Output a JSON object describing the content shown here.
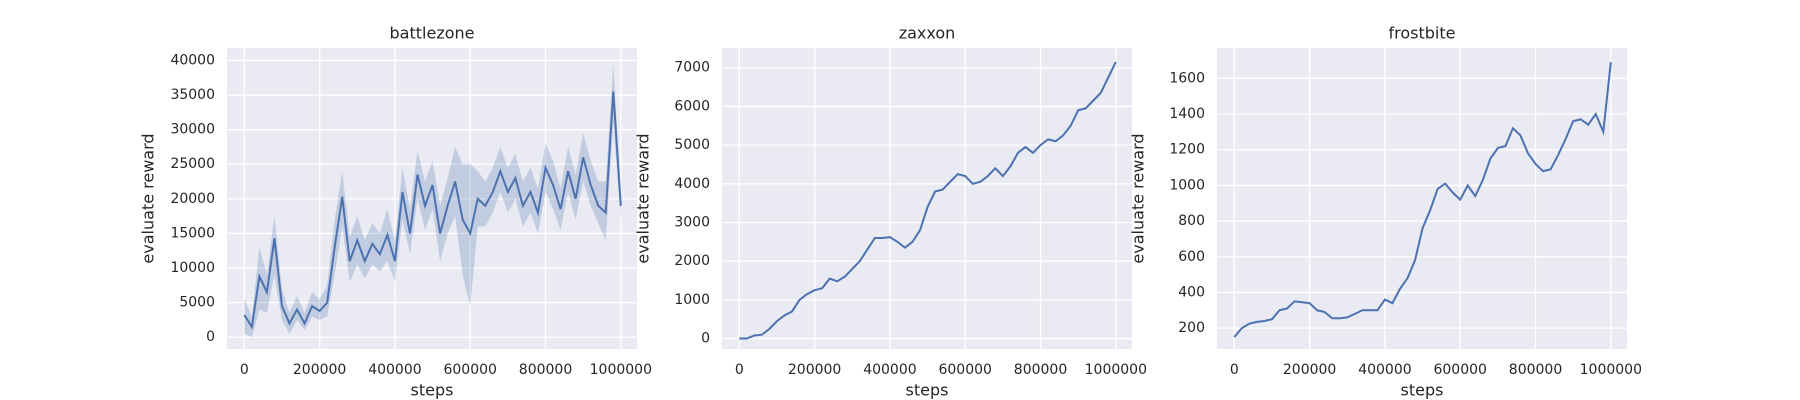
{
  "chart_data": [
    {
      "type": "line",
      "title": "battlezone",
      "x_label": "steps",
      "y_label": "evaluate reward",
      "color": "#4c72b0",
      "grid": true,
      "x": [
        0,
        20000,
        40000,
        60000,
        80000,
        100000,
        120000,
        140000,
        160000,
        180000,
        200000,
        220000,
        240000,
        260000,
        280000,
        300000,
        320000,
        340000,
        360000,
        380000,
        400000,
        420000,
        440000,
        460000,
        480000,
        500000,
        520000,
        540000,
        560000,
        580000,
        600000,
        620000,
        640000,
        660000,
        680000,
        700000,
        720000,
        740000,
        760000,
        780000,
        800000,
        820000,
        840000,
        860000,
        880000,
        900000,
        920000,
        940000,
        960000,
        980000,
        1000000
      ],
      "values": [
        3200,
        1500,
        8800,
        6500,
        14300,
        4500,
        2000,
        4000,
        2000,
        4500,
        3800,
        5000,
        13000,
        20300,
        11000,
        14000,
        11000,
        13500,
        12000,
        14800,
        11000,
        21000,
        15000,
        23500,
        19000,
        22000,
        15000,
        19000,
        22500,
        17000,
        15000,
        20000,
        19000,
        21000,
        24000,
        21000,
        23000,
        19000,
        21000,
        18000,
        24500,
        22000,
        18500,
        24000,
        20000,
        26000,
        22000,
        19000,
        18000,
        35500,
        19000
      ],
      "band_lower": [
        500,
        0,
        4000,
        3500,
        9000,
        2500,
        500,
        2500,
        1000,
        3000,
        2500,
        3000,
        9000,
        16000,
        8000,
        10500,
        8500,
        10500,
        9500,
        11000,
        8000,
        17000,
        12000,
        20000,
        15500,
        18500,
        11000,
        15000,
        17500,
        9000,
        4500,
        16000,
        16000,
        18000,
        21000,
        18000,
        20000,
        16000,
        18000,
        15000,
        21000,
        18500,
        15500,
        21000,
        17000,
        22500,
        19000,
        16500,
        14000,
        31000,
        17000
      ],
      "band_upper": [
        5500,
        3000,
        13000,
        9000,
        17500,
        7000,
        3500,
        6000,
        3500,
        6500,
        5500,
        7500,
        17000,
        24000,
        14500,
        17500,
        14000,
        16500,
        15000,
        18500,
        14000,
        24500,
        18500,
        27000,
        22500,
        25500,
        19000,
        23000,
        27500,
        25000,
        25000,
        24000,
        22500,
        24500,
        27500,
        24500,
        26500,
        22500,
        24500,
        21500,
        28000,
        25500,
        21500,
        27500,
        23500,
        29500,
        25500,
        22500,
        22500,
        39500,
        21000
      ],
      "xlim": [
        -46000,
        1043000
      ],
      "xticks": [
        0,
        200000,
        400000,
        600000,
        800000,
        1000000
      ],
      "ylim": [
        -1700,
        41800
      ],
      "yticks": [
        0,
        5000,
        10000,
        15000,
        20000,
        25000,
        30000,
        35000,
        40000
      ]
    },
    {
      "type": "line",
      "title": "zaxxon",
      "x_label": "steps",
      "y_label": "evaluate reward",
      "color": "#4c72b0",
      "grid": true,
      "x": [
        0,
        20000,
        40000,
        60000,
        80000,
        100000,
        120000,
        140000,
        160000,
        180000,
        200000,
        220000,
        240000,
        260000,
        280000,
        300000,
        320000,
        340000,
        360000,
        380000,
        400000,
        420000,
        440000,
        460000,
        480000,
        500000,
        520000,
        540000,
        560000,
        580000,
        600000,
        620000,
        640000,
        660000,
        680000,
        700000,
        720000,
        740000,
        760000,
        780000,
        800000,
        820000,
        840000,
        860000,
        880000,
        900000,
        920000,
        940000,
        960000,
        980000,
        1000000
      ],
      "values": [
        0,
        0,
        80,
        100,
        250,
        450,
        600,
        700,
        1000,
        1150,
        1250,
        1300,
        1550,
        1480,
        1600,
        1800,
        2000,
        2300,
        2600,
        2600,
        2620,
        2500,
        2350,
        2500,
        2800,
        3400,
        3800,
        3850,
        4050,
        4250,
        4200,
        4000,
        4050,
        4200,
        4400,
        4200,
        4450,
        4800,
        4950,
        4800,
        5000,
        5150,
        5100,
        5250,
        5500,
        5900,
        5950,
        6150,
        6350,
        6750,
        7150
      ],
      "xlim": [
        -46000,
        1043000
      ],
      "xticks": [
        0,
        200000,
        400000,
        600000,
        800000,
        1000000
      ],
      "ylim": [
        -270,
        7510
      ],
      "yticks": [
        0,
        1000,
        2000,
        3000,
        4000,
        5000,
        6000,
        7000
      ]
    },
    {
      "type": "line",
      "title": "frostbite",
      "x_label": "steps",
      "y_label": "evaluate reward",
      "color": "#4c72b0",
      "grid": true,
      "x": [
        0,
        20000,
        40000,
        60000,
        80000,
        100000,
        120000,
        140000,
        160000,
        180000,
        200000,
        220000,
        240000,
        260000,
        280000,
        300000,
        320000,
        340000,
        360000,
        380000,
        400000,
        420000,
        440000,
        460000,
        480000,
        500000,
        520000,
        540000,
        560000,
        580000,
        600000,
        620000,
        640000,
        660000,
        680000,
        700000,
        720000,
        740000,
        760000,
        780000,
        800000,
        820000,
        840000,
        860000,
        880000,
        900000,
        920000,
        940000,
        960000,
        980000,
        1000000
      ],
      "values": [
        150,
        200,
        225,
        235,
        240,
        250,
        300,
        310,
        350,
        345,
        340,
        300,
        290,
        255,
        255,
        260,
        280,
        300,
        300,
        300,
        360,
        340,
        420,
        480,
        580,
        760,
        860,
        980,
        1010,
        960,
        920,
        1000,
        940,
        1030,
        1150,
        1210,
        1220,
        1320,
        1280,
        1180,
        1120,
        1080,
        1090,
        1170,
        1260,
        1360,
        1370,
        1340,
        1400,
        1300,
        1690
      ],
      "xlim": [
        -46000,
        1043000
      ],
      "xticks": [
        0,
        200000,
        400000,
        600000,
        800000,
        1000000
      ],
      "ylim": [
        83,
        1770
      ],
      "yticks": [
        200,
        400,
        600,
        800,
        1000,
        1200,
        1400,
        1600
      ]
    }
  ]
}
